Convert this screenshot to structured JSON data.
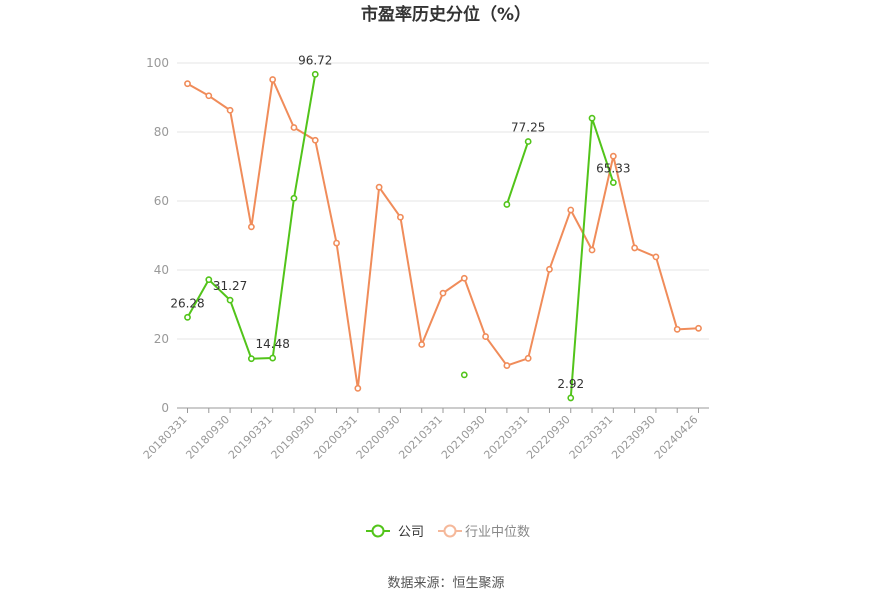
{
  "chart_data": {
    "type": "line",
    "title": "市盈率历史分位（%）",
    "source": "数据来源：恒生聚源",
    "ylim": [
      0,
      100
    ],
    "yticks": [
      0,
      20,
      40,
      60,
      80,
      100
    ],
    "grid": true,
    "legend_position": "bottom",
    "x": [
      "20180331",
      "20180630",
      "20180930",
      "20181231",
      "20190331",
      "20190630",
      "20190930",
      "20191231",
      "20200331",
      "20200630",
      "20200930",
      "20201231",
      "20210331",
      "20210630",
      "20210930",
      "20211231",
      "20220331",
      "20220630",
      "20220930",
      "20221231",
      "20230331",
      "20230630",
      "20230930",
      "20231231",
      "20240426"
    ],
    "xtick_labels": [
      "20180331",
      "20180930",
      "20190331",
      "20190930",
      "20200331",
      "20200930",
      "20210331",
      "20210930",
      "20220331",
      "20220930",
      "20230331",
      "20230930",
      "20240426"
    ],
    "series": [
      {
        "name": "公司",
        "color": "#52c41a",
        "values": [
          26.28,
          37.2,
          31.27,
          14.3,
          14.48,
          60.8,
          96.72,
          null,
          null,
          null,
          null,
          null,
          null,
          9.6,
          null,
          59.0,
          77.25,
          null,
          2.92,
          84.0,
          65.33,
          null,
          null,
          null,
          null
        ],
        "labels": {
          "0": "26.28",
          "2": "31.27",
          "4": "14.48",
          "6": "96.72",
          "16": "77.25",
          "18": "2.92",
          "20": "65.33"
        }
      },
      {
        "name": "行业中位数",
        "color": "#f08c5a",
        "values": [
          94.0,
          90.5,
          86.3,
          52.5,
          95.2,
          81.3,
          77.6,
          47.8,
          5.7,
          64.0,
          55.3,
          18.4,
          33.3,
          37.6,
          20.7,
          12.3,
          14.4,
          40.2,
          57.4,
          45.8,
          73.0,
          46.4,
          43.8,
          22.8,
          23.1
        ]
      }
    ]
  }
}
